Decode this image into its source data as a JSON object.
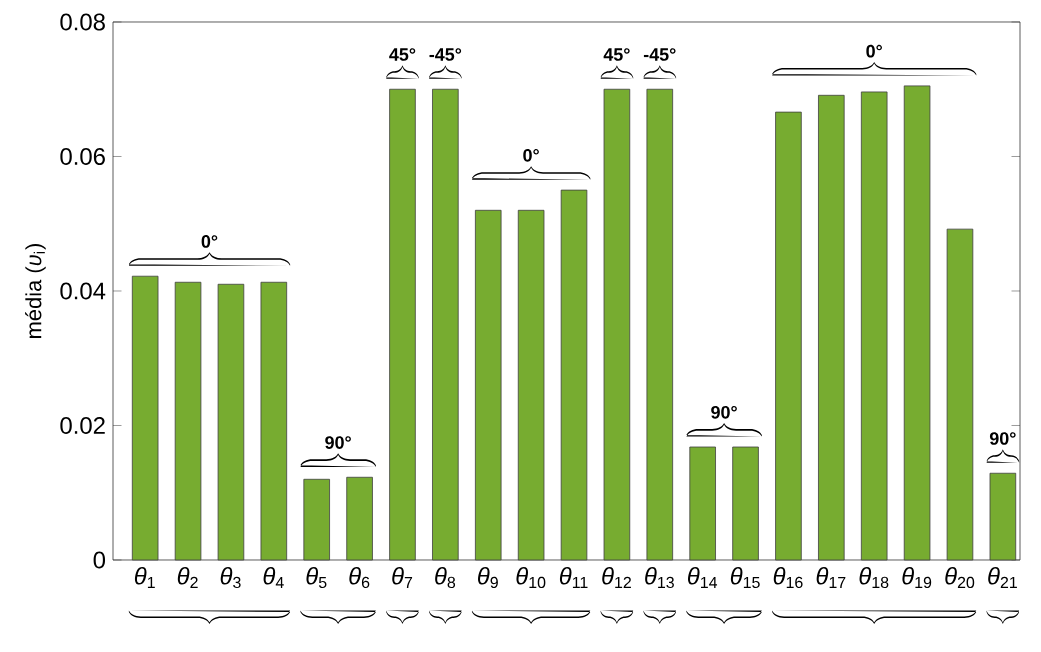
{
  "chart_data": {
    "type": "bar",
    "ylabel": "média (*υ*$_{i}$)",
    "categories": [
      "*θ*$_{1}$",
      "*θ*$_{2}$",
      "*θ*$_{3}$",
      "*θ*$_{4}$",
      "*θ*$_{5}$",
      "*θ*$_{6}$",
      "*θ*$_{7}$",
      "*θ*$_{8}$",
      "*θ*$_{9}$",
      "*θ*$_{10}$",
      "*θ*$_{11}$",
      "*θ*$_{12}$",
      "*θ*$_{13}$",
      "*θ*$_{14}$",
      "*θ*$_{15}$",
      "*θ*$_{16}$",
      "*θ*$_{17}$",
      "*θ*$_{18}$",
      "*θ*$_{19}$",
      "*θ*$_{20}$",
      "*θ*$_{21}$"
    ],
    "values": [
      0.0422,
      0.0413,
      0.041,
      0.0413,
      0.012,
      0.0123,
      0.07,
      0.07,
      0.052,
      0.052,
      0.055,
      0.07,
      0.07,
      0.0168,
      0.0168,
      0.0666,
      0.0691,
      0.0696,
      0.0705,
      0.0492,
      0.0129
    ],
    "color": "#77ac30",
    "ylim": [
      0,
      0.08
    ],
    "yticks": [
      0,
      0.02,
      0.04,
      0.06,
      0.08
    ],
    "annotations": [
      "0°",
      "90°",
      "45°",
      "-45°",
      "0°",
      "45°",
      "-45°",
      "90°",
      "0°",
      "90°"
    ]
  }
}
